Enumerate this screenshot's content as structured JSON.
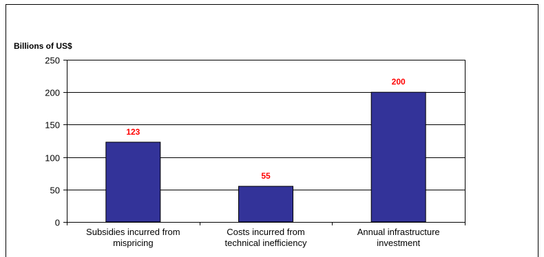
{
  "chart_data": {
    "type": "bar",
    "title": "",
    "ylabel": "Billions of US$",
    "xlabel": "",
    "categories": [
      [
        "Subsidies incurred from",
        "mispricing"
      ],
      [
        "Costs incurred from",
        "technical inefficiency"
      ],
      [
        "Annual infrastructure",
        "investment"
      ]
    ],
    "values": [
      123,
      55,
      200
    ],
    "data_labels": [
      "123",
      "55",
      "200"
    ],
    "ylim": [
      0,
      250
    ],
    "yticks": [
      0,
      50,
      100,
      150,
      200,
      250
    ],
    "grid": true,
    "legend": "none",
    "colors": {
      "bar": "#333399",
      "bar_edge": "#000000",
      "data_label": "#ff0000",
      "grid": "#000000"
    }
  }
}
